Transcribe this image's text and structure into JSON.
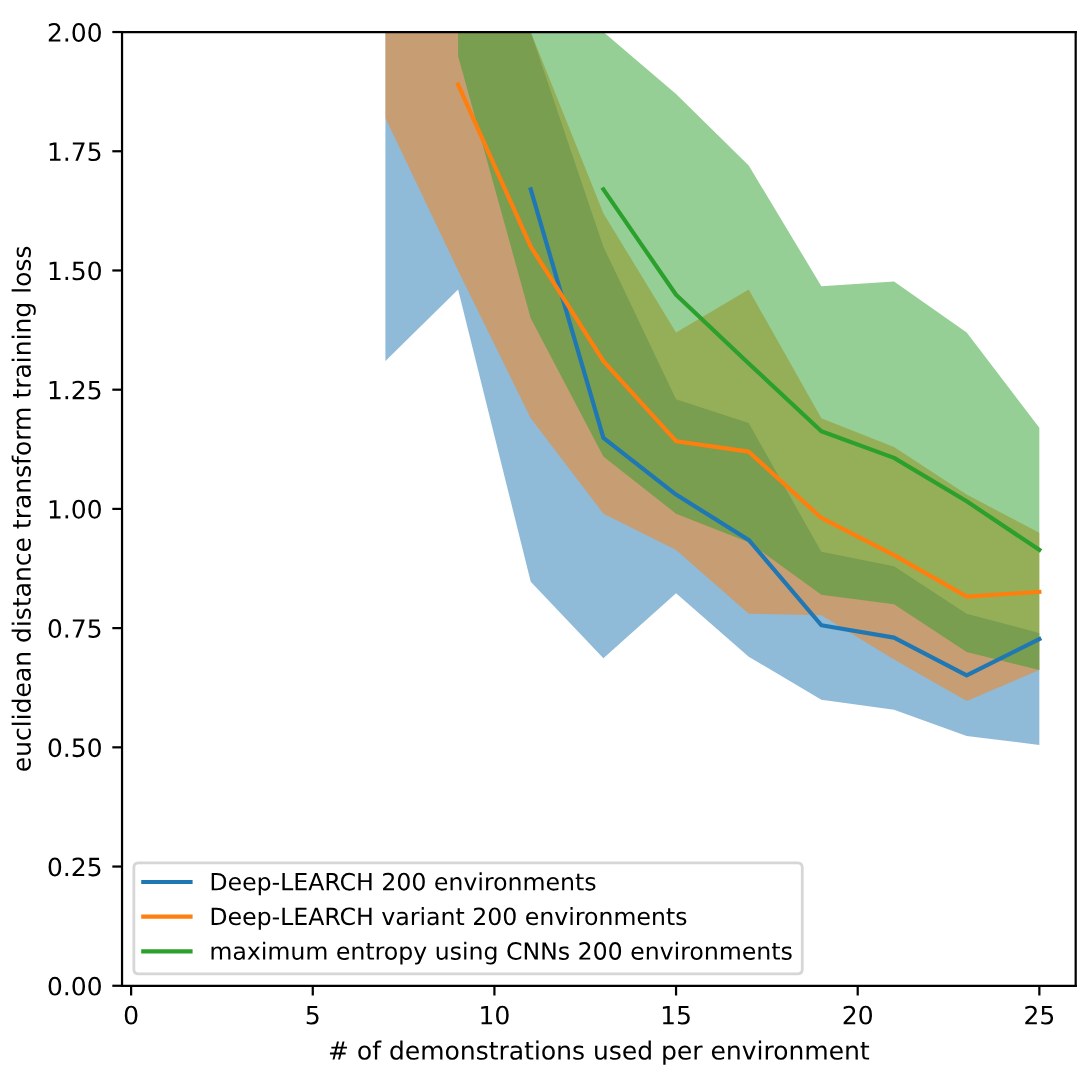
{
  "chart_data": {
    "type": "line",
    "xlabel": "# of demonstrations used per environment",
    "ylabel": "euclidean distance transform training loss",
    "xlim": [
      -0.25,
      26.0
    ],
    "ylim": [
      0,
      2.0
    ],
    "xticks": [
      0,
      5,
      10,
      15,
      20,
      25
    ],
    "yticks": [
      {
        "value": 0,
        "label": "0.00"
      },
      {
        "value": 0.25,
        "label": "0.25"
      },
      {
        "value": 0.5,
        "label": "0.50"
      },
      {
        "value": 0.75,
        "label": "0.75"
      },
      {
        "value": 1.0,
        "label": "1.00"
      },
      {
        "value": 1.25,
        "label": "1.25"
      },
      {
        "value": 1.5,
        "label": "1.50"
      },
      {
        "value": 1.75,
        "label": "1.75"
      },
      {
        "value": 2.0,
        "label": "2.00"
      }
    ],
    "grid": false,
    "legend": "bottom left",
    "marker": "none",
    "line_style": "solid",
    "series": [
      {
        "name": "Deep-LEARCH 200 environments",
        "color": "#1f77b4",
        "x": [
          7,
          9,
          11,
          13,
          15,
          17,
          19,
          21,
          23,
          25
        ],
        "values": [
          null,
          null,
          1.67,
          1.149,
          1.03,
          0.935,
          0.756,
          0.73,
          0.651,
          0.727
        ],
        "lower": [
          1.31,
          1.46,
          0.847,
          0.687,
          0.823,
          0.69,
          0.6,
          0.579,
          0.524,
          0.505
        ],
        "upper": [
          2.0,
          2.0,
          2.0,
          1.55,
          1.23,
          1.18,
          0.91,
          0.88,
          0.78,
          0.74
        ]
      },
      {
        "name": "Deep-LEARCH variant 200 environments",
        "color": "#ff7f0e",
        "x": [
          7,
          9,
          11,
          13,
          15,
          17,
          19,
          21,
          23,
          25
        ],
        "values": [
          null,
          1.89,
          1.55,
          1.31,
          1.142,
          1.12,
          0.981,
          0.903,
          0.816,
          0.826
        ],
        "lower": [
          1.82,
          1.5,
          1.19,
          0.99,
          0.914,
          0.78,
          0.777,
          0.684,
          0.597,
          0.662
        ],
        "upper": [
          2.0,
          2.0,
          2.0,
          1.62,
          1.37,
          1.46,
          1.19,
          1.13,
          1.03,
          0.95
        ]
      },
      {
        "name": "maximum entropy using CNNs 200 environments",
        "color": "#2ca02c",
        "x": [
          9,
          11,
          13,
          15,
          17,
          19,
          21,
          23,
          25
        ],
        "values": [
          null,
          null,
          1.67,
          1.449,
          1.305,
          1.163,
          1.107,
          1.016,
          0.914
        ],
        "lower": [
          1.95,
          1.4,
          1.11,
          0.99,
          0.93,
          0.82,
          0.8,
          0.7,
          0.662
        ],
        "upper": [
          2.0,
          2.0,
          2.0,
          1.87,
          1.72,
          1.467,
          1.477,
          1.37,
          1.17
        ]
      }
    ]
  }
}
